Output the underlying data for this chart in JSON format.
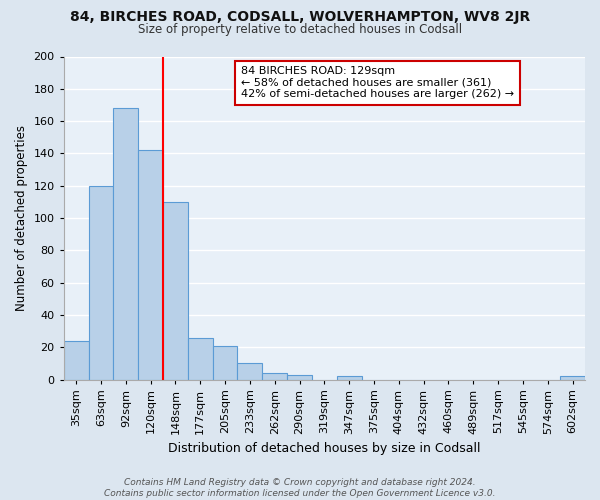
{
  "title": "84, BIRCHES ROAD, CODSALL, WOLVERHAMPTON, WV8 2JR",
  "subtitle": "Size of property relative to detached houses in Codsall",
  "bar_labels": [
    "35sqm",
    "63sqm",
    "92sqm",
    "120sqm",
    "148sqm",
    "177sqm",
    "205sqm",
    "233sqm",
    "262sqm",
    "290sqm",
    "319sqm",
    "347sqm",
    "375sqm",
    "404sqm",
    "432sqm",
    "460sqm",
    "489sqm",
    "517sqm",
    "545sqm",
    "574sqm",
    "602sqm"
  ],
  "bar_values": [
    24,
    120,
    168,
    142,
    110,
    26,
    21,
    10,
    4,
    3,
    0,
    2,
    0,
    0,
    0,
    0,
    0,
    0,
    0,
    0,
    2
  ],
  "bar_color": "#b8d0e8",
  "bar_edge_color": "#5b9bd5",
  "ylabel": "Number of detached properties",
  "xlabel": "Distribution of detached houses by size in Codsall",
  "ylim": [
    0,
    200
  ],
  "yticks": [
    0,
    20,
    40,
    60,
    80,
    100,
    120,
    140,
    160,
    180,
    200
  ],
  "red_line_index": 3,
  "annotation_title": "84 BIRCHES ROAD: 129sqm",
  "annotation_line1": "← 58% of detached houses are smaller (361)",
  "annotation_line2": "42% of semi-detached houses are larger (262) →",
  "annotation_box_color": "#ffffff",
  "annotation_box_edge": "#cc0000",
  "footnote1": "Contains HM Land Registry data © Crown copyright and database right 2024.",
  "footnote2": "Contains public sector information licensed under the Open Government Licence v3.0.",
  "background_color": "#dce6f0",
  "plot_background_color": "#e8f0f8",
  "grid_color": "#ffffff"
}
